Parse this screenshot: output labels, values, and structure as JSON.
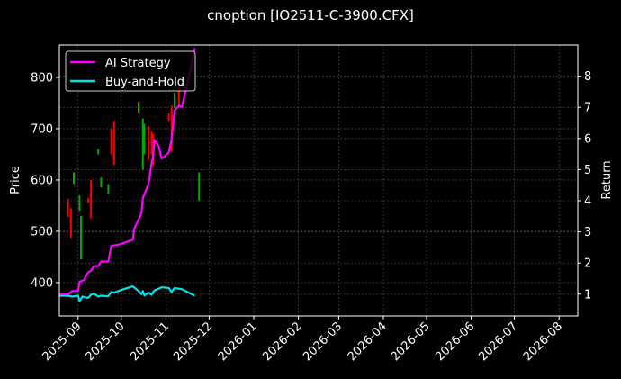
{
  "figure": {
    "background": "#000000",
    "title": "cnoption [IO2511-C-3900.CFX]"
  },
  "legend": {
    "items": [
      {
        "label": "AI Strategy",
        "color": "#ff00ff"
      },
      {
        "label": "Buy-and-Hold",
        "color": "#00e5e5"
      }
    ]
  },
  "axes": {
    "left_label": "Price",
    "right_label": "Return",
    "left_ticks": [
      "400",
      "500",
      "600",
      "700",
      "800"
    ],
    "right_ticks": [
      "1",
      "2",
      "3",
      "4",
      "5",
      "6",
      "7",
      "8"
    ],
    "x_ticks": [
      "2025-09",
      "2025-10",
      "2025-11",
      "2025-12",
      "2026-01",
      "2026-02",
      "2026-03",
      "2026-04",
      "2026-05",
      "2026-06",
      "2026-07",
      "2026-08"
    ]
  },
  "chart_data": {
    "type": "line",
    "title": "cnoption [IO2511-C-3900.CFX]",
    "xlabel": "",
    "ylabel": "Price",
    "y2label": "Return",
    "ylim": [
      335,
      863
    ],
    "y2lim": [
      0.3,
      9.0
    ],
    "xlim": [
      "2025-08-19",
      "2026-08-14"
    ],
    "grid": true,
    "legend_position": "upper left",
    "x_ticks": [
      "2025-09",
      "2025-10",
      "2025-11",
      "2025-12",
      "2026-01",
      "2026-02",
      "2026-03",
      "2026-04",
      "2026-05",
      "2026-06",
      "2026-07",
      "2026-08"
    ],
    "candlesticks": {
      "axis": "left",
      "up_color": "#00aa00",
      "down_color": "#ff0000",
      "bars": [
        {
          "date": "2025-08-25",
          "low": 528,
          "high": 563,
          "dir": "down"
        },
        {
          "date": "2025-08-27",
          "low": 488,
          "high": 545,
          "dir": "down"
        },
        {
          "date": "2025-08-29",
          "low": 592,
          "high": 615,
          "dir": "up"
        },
        {
          "date": "2025-09-02",
          "low": 540,
          "high": 570,
          "dir": "up"
        },
        {
          "date": "2025-09-03",
          "low": 445,
          "high": 530,
          "dir": "up"
        },
        {
          "date": "2025-09-08",
          "low": 556,
          "high": 565,
          "dir": "down"
        },
        {
          "date": "2025-09-10",
          "low": 525,
          "high": 600,
          "dir": "down"
        },
        {
          "date": "2025-09-15",
          "low": 650,
          "high": 660,
          "dir": "up"
        },
        {
          "date": "2025-09-17",
          "low": 585,
          "high": 605,
          "dir": "up"
        },
        {
          "date": "2025-09-22",
          "low": 572,
          "high": 592,
          "dir": "up"
        },
        {
          "date": "2025-09-24",
          "low": 650,
          "high": 700,
          "dir": "down"
        },
        {
          "date": "2025-09-26",
          "low": 630,
          "high": 715,
          "dir": "down"
        },
        {
          "date": "2025-10-13",
          "low": 730,
          "high": 752,
          "dir": "up"
        },
        {
          "date": "2025-10-16",
          "low": 620,
          "high": 720,
          "dir": "up"
        },
        {
          "date": "2025-10-17",
          "low": 650,
          "high": 710,
          "dir": "up"
        },
        {
          "date": "2025-10-20",
          "low": 640,
          "high": 705,
          "dir": "down"
        },
        {
          "date": "2025-10-22",
          "low": 650,
          "high": 695,
          "dir": "down"
        },
        {
          "date": "2025-10-23",
          "low": 630,
          "high": 690,
          "dir": "down"
        },
        {
          "date": "2025-11-03",
          "low": 715,
          "high": 730,
          "dir": "down"
        },
        {
          "date": "2025-11-05",
          "low": 655,
          "high": 745,
          "dir": "down"
        },
        {
          "date": "2025-11-07",
          "low": 740,
          "high": 770,
          "dir": "up"
        },
        {
          "date": "2025-11-10",
          "low": 745,
          "high": 790,
          "dir": "down"
        },
        {
          "date": "2025-11-24",
          "low": 560,
          "high": 615,
          "dir": "up"
        }
      ]
    },
    "series": [
      {
        "name": "AI Strategy",
        "axis": "right",
        "color": "#ff00ff",
        "points": [
          [
            "2025-08-19",
            1.0
          ],
          [
            "2025-08-25",
            1.0
          ],
          [
            "2025-08-28",
            1.1
          ],
          [
            "2025-09-01",
            1.1
          ],
          [
            "2025-09-02",
            1.4
          ],
          [
            "2025-09-05",
            1.45
          ],
          [
            "2025-09-08",
            1.7
          ],
          [
            "2025-09-10",
            1.75
          ],
          [
            "2025-09-12",
            1.9
          ],
          [
            "2025-09-15",
            1.9
          ],
          [
            "2025-09-17",
            2.05
          ],
          [
            "2025-09-22",
            2.05
          ],
          [
            "2025-09-24",
            2.55
          ],
          [
            "2025-09-30",
            2.6
          ],
          [
            "2025-10-09",
            2.75
          ],
          [
            "2025-10-10",
            3.1
          ],
          [
            "2025-10-13",
            3.4
          ],
          [
            "2025-10-15",
            3.6
          ],
          [
            "2025-10-16",
            4.1
          ],
          [
            "2025-10-17",
            4.2
          ],
          [
            "2025-10-20",
            4.55
          ],
          [
            "2025-10-22",
            5.2
          ],
          [
            "2025-10-23",
            5.4
          ],
          [
            "2025-10-24",
            5.95
          ],
          [
            "2025-10-27",
            5.75
          ],
          [
            "2025-10-29",
            5.35
          ],
          [
            "2025-11-03",
            5.55
          ],
          [
            "2025-11-05",
            6.0
          ],
          [
            "2025-11-07",
            6.9
          ],
          [
            "2025-11-10",
            7.05
          ],
          [
            "2025-11-12",
            7.0
          ],
          [
            "2025-11-14",
            7.4
          ],
          [
            "2025-11-18",
            8.2
          ],
          [
            "2025-11-21",
            8.9
          ]
        ]
      },
      {
        "name": "Buy-and-Hold",
        "axis": "right",
        "color": "#00e5e5",
        "points": [
          [
            "2025-08-19",
            0.95
          ],
          [
            "2025-08-25",
            0.95
          ],
          [
            "2025-08-28",
            0.92
          ],
          [
            "2025-09-01",
            0.95
          ],
          [
            "2025-09-02",
            0.78
          ],
          [
            "2025-09-04",
            0.92
          ],
          [
            "2025-09-08",
            0.88
          ],
          [
            "2025-09-10",
            0.98
          ],
          [
            "2025-09-12",
            1.02
          ],
          [
            "2025-09-15",
            0.92
          ],
          [
            "2025-09-17",
            0.95
          ],
          [
            "2025-09-22",
            0.93
          ],
          [
            "2025-09-24",
            1.07
          ],
          [
            "2025-09-26",
            1.05
          ],
          [
            "2025-09-30",
            1.12
          ],
          [
            "2025-10-09",
            1.25
          ],
          [
            "2025-10-13",
            1.1
          ],
          [
            "2025-10-15",
            1.0
          ],
          [
            "2025-10-16",
            1.1
          ],
          [
            "2025-10-17",
            0.96
          ],
          [
            "2025-10-20",
            1.05
          ],
          [
            "2025-10-22",
            0.98
          ],
          [
            "2025-10-24",
            1.12
          ],
          [
            "2025-10-29",
            1.22
          ],
          [
            "2025-11-03",
            1.2
          ],
          [
            "2025-11-05",
            1.07
          ],
          [
            "2025-11-07",
            1.2
          ],
          [
            "2025-11-12",
            1.16
          ],
          [
            "2025-11-21",
            0.95
          ]
        ]
      }
    ]
  }
}
